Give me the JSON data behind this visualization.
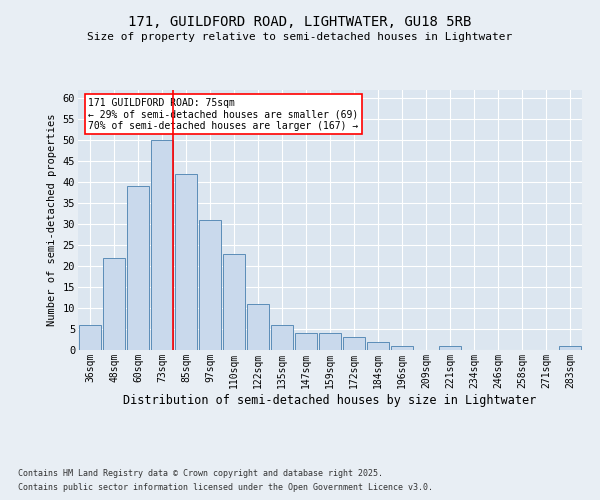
{
  "title_line1": "171, GUILDFORD ROAD, LIGHTWATER, GU18 5RB",
  "title_line2": "Size of property relative to semi-detached houses in Lightwater",
  "xlabel": "Distribution of semi-detached houses by size in Lightwater",
  "ylabel": "Number of semi-detached properties",
  "categories": [
    "36sqm",
    "48sqm",
    "60sqm",
    "73sqm",
    "85sqm",
    "97sqm",
    "110sqm",
    "122sqm",
    "135sqm",
    "147sqm",
    "159sqm",
    "172sqm",
    "184sqm",
    "196sqm",
    "209sqm",
    "221sqm",
    "234sqm",
    "246sqm",
    "258sqm",
    "271sqm",
    "283sqm"
  ],
  "values": [
    6,
    22,
    39,
    50,
    42,
    31,
    23,
    11,
    6,
    4,
    4,
    3,
    2,
    1,
    0,
    1,
    0,
    0,
    0,
    0,
    1
  ],
  "bar_color": "#c9d9ec",
  "bar_edge_color": "#5b8db8",
  "red_line_x": 3.45,
  "annotation_title": "171 GUILDFORD ROAD: 75sqm",
  "annotation_line1": "← 29% of semi-detached houses are smaller (69)",
  "annotation_line2": "70% of semi-detached houses are larger (167) →",
  "ylim": [
    0,
    62
  ],
  "yticks": [
    0,
    5,
    10,
    15,
    20,
    25,
    30,
    35,
    40,
    45,
    50,
    55,
    60
  ],
  "footnote_line1": "Contains HM Land Registry data © Crown copyright and database right 2025.",
  "footnote_line2": "Contains public sector information licensed under the Open Government Licence v3.0.",
  "background_color": "#e8eef4",
  "plot_background_color": "#dce6f0"
}
